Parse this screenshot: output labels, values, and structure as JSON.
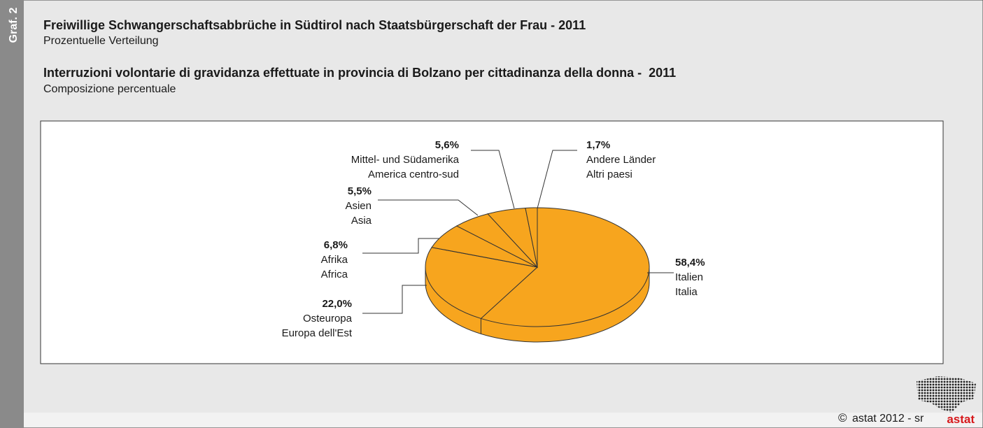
{
  "graf_label": "Graf. 2",
  "title_de": "Freiwillige Schwangerschaftsabbrüche in Südtirol nach Staatsbürgerschaft der Frau - 2011",
  "subtitle_de": "Prozentuelle Verteilung",
  "title_it": "Interruzioni volontarie di gravidanza effettuate in provincia di Bolzano per cittadinanza della donna -  2011",
  "subtitle_it": "Composizione percentuale",
  "chart_data": {
    "type": "pie",
    "categories": [
      "Italien",
      "Osteuropa",
      "Afrika",
      "Asien",
      "Mittel- und Südamerika",
      "Andere Länder"
    ],
    "categories_it": [
      "Italia",
      "Europa dell'Est",
      "Africa",
      "Asia",
      "America centro-sud",
      "Altri paesi"
    ],
    "values": [
      58.4,
      22.0,
      6.8,
      5.5,
      5.6,
      1.7
    ],
    "value_labels": [
      "58,4%",
      "22,0%",
      "6,8%",
      "5,5%",
      "5,6%",
      "1,7%"
    ],
    "color": "#F7A51E"
  },
  "footer": {
    "copyright": "©",
    "credit": "astat 2012 - sr",
    "logo": "astat"
  }
}
